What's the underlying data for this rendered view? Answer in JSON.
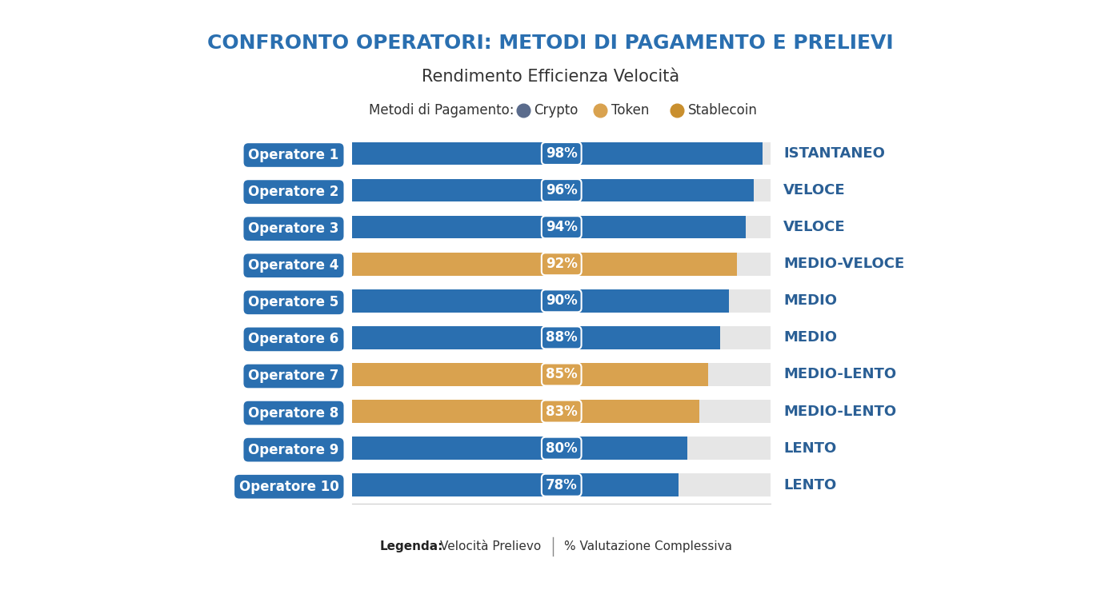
{
  "chart_data": {
    "type": "bar",
    "orientation": "horizontal",
    "title": "CONFRONTO OPERATORI: METODI DI PAGAMENTO E PRELIEVI",
    "subtitle": "Rendimento Efficienza Velocità",
    "payment_legend": {
      "title": "Metodi di Pagamento:",
      "items": [
        {
          "name": "Crypto",
          "color": "#5a6b8c"
        },
        {
          "name": "Token",
          "color": "#d9a24f"
        },
        {
          "name": "Stablecoin",
          "color": "#c98f2e"
        }
      ]
    },
    "categories": [
      "Operatore 1",
      "Operatore 2",
      "Operatore 3",
      "Operatore 4",
      "Operatore 5",
      "Operatore 6",
      "Operatore 7",
      "Operatore 8",
      "Operatore 9",
      "Operatore 10"
    ],
    "values": [
      98,
      96,
      94,
      92,
      90,
      88,
      85,
      83,
      80,
      78
    ],
    "value_labels": [
      "98%",
      "96%",
      "94%",
      "92%",
      "90%",
      "88%",
      "85%",
      "83%",
      "80%",
      "78%"
    ],
    "data_labels": true,
    "speed_labels": [
      "ISTANTANEO",
      "VELOCE",
      "VELOCE",
      "MEDIO-VELOCE",
      "MEDIO",
      "MEDIO",
      "MEDIO-LENTO",
      "MEDIO-LENTO",
      "LENTO",
      "LENTO"
    ],
    "colors": [
      "#2a6fb0",
      "#2a6fb0",
      "#2a6fb0",
      "#d9a24f",
      "#2a6fb0",
      "#2a6fb0",
      "#d9a24f",
      "#d9a24f",
      "#2a6fb0",
      "#2a6fb0"
    ],
    "xlim": [
      0,
      100
    ],
    "xticks": [],
    "tick_labels": "y",
    "grid": false,
    "footer": {
      "title": "Legenda:",
      "items": [
        "Velocità Prelievo",
        "% Valutazione Complessiva"
      ]
    }
  }
}
